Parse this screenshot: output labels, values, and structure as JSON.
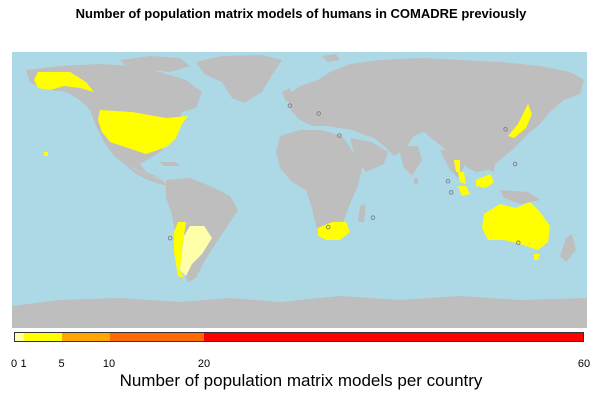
{
  "title": "Number of population matrix models of humans in COMADRE previously",
  "colors": {
    "ocean": "#add8e6",
    "land": "#bebebe",
    "highlight_low": "#ffff00",
    "highlight_pale": "#ffffaa",
    "point": "#808080"
  },
  "legend": {
    "title": "Number of population matrix models per country",
    "range": [
      0,
      60
    ],
    "segments": [
      {
        "from": 0,
        "to": 1,
        "color": "#ffffaa"
      },
      {
        "from": 1,
        "to": 5,
        "color": "#ffff00"
      },
      {
        "from": 5,
        "to": 10,
        "color": "#ffa500"
      },
      {
        "from": 10,
        "to": 20,
        "color": "#ff6a00"
      },
      {
        "from": 20,
        "to": 60,
        "color": "#ff0000"
      }
    ],
    "ticks": [
      "0",
      "1",
      "5",
      "10",
      "20",
      "60"
    ]
  },
  "highlighted_countries": [
    {
      "code": "USA",
      "color": "#ffff00"
    },
    {
      "code": "Alaska",
      "color": "#ffff00"
    },
    {
      "code": "Argentina",
      "color": "#ffffaa"
    },
    {
      "code": "Chile",
      "color": "#ffff00"
    },
    {
      "code": "Australia",
      "color": "#ffff00"
    },
    {
      "code": "South Africa",
      "color": "#ffff00"
    },
    {
      "code": "Japan",
      "color": "#ffff00"
    },
    {
      "code": "Malaysia",
      "color": "#ffff00"
    },
    {
      "code": "Indonesia",
      "color": "#ffff00"
    },
    {
      "code": "Thailand",
      "color": "#ffff00"
    }
  ],
  "study_points": [
    {
      "name": "Western Europe",
      "lon": 4,
      "lat": 51
    },
    {
      "name": "Eastern Europe",
      "lon": 22,
      "lat": 46
    },
    {
      "name": "Middle East",
      "lon": 35,
      "lat": 32
    },
    {
      "name": "Japan",
      "lon": 139,
      "lat": 36
    },
    {
      "name": "Western Pacific",
      "lon": 145,
      "lat": 14
    },
    {
      "name": "Malaysia",
      "lon": 103,
      "lat": 3
    },
    {
      "name": "Sumatra",
      "lon": 105,
      "lat": -4
    },
    {
      "name": "Indian Ocean",
      "lon": 56,
      "lat": -20
    },
    {
      "name": "South Africa",
      "lon": 28,
      "lat": -26
    },
    {
      "name": "Chile",
      "lon": -71,
      "lat": -33
    },
    {
      "name": "Australia",
      "lon": 147,
      "lat": -36
    }
  ]
}
